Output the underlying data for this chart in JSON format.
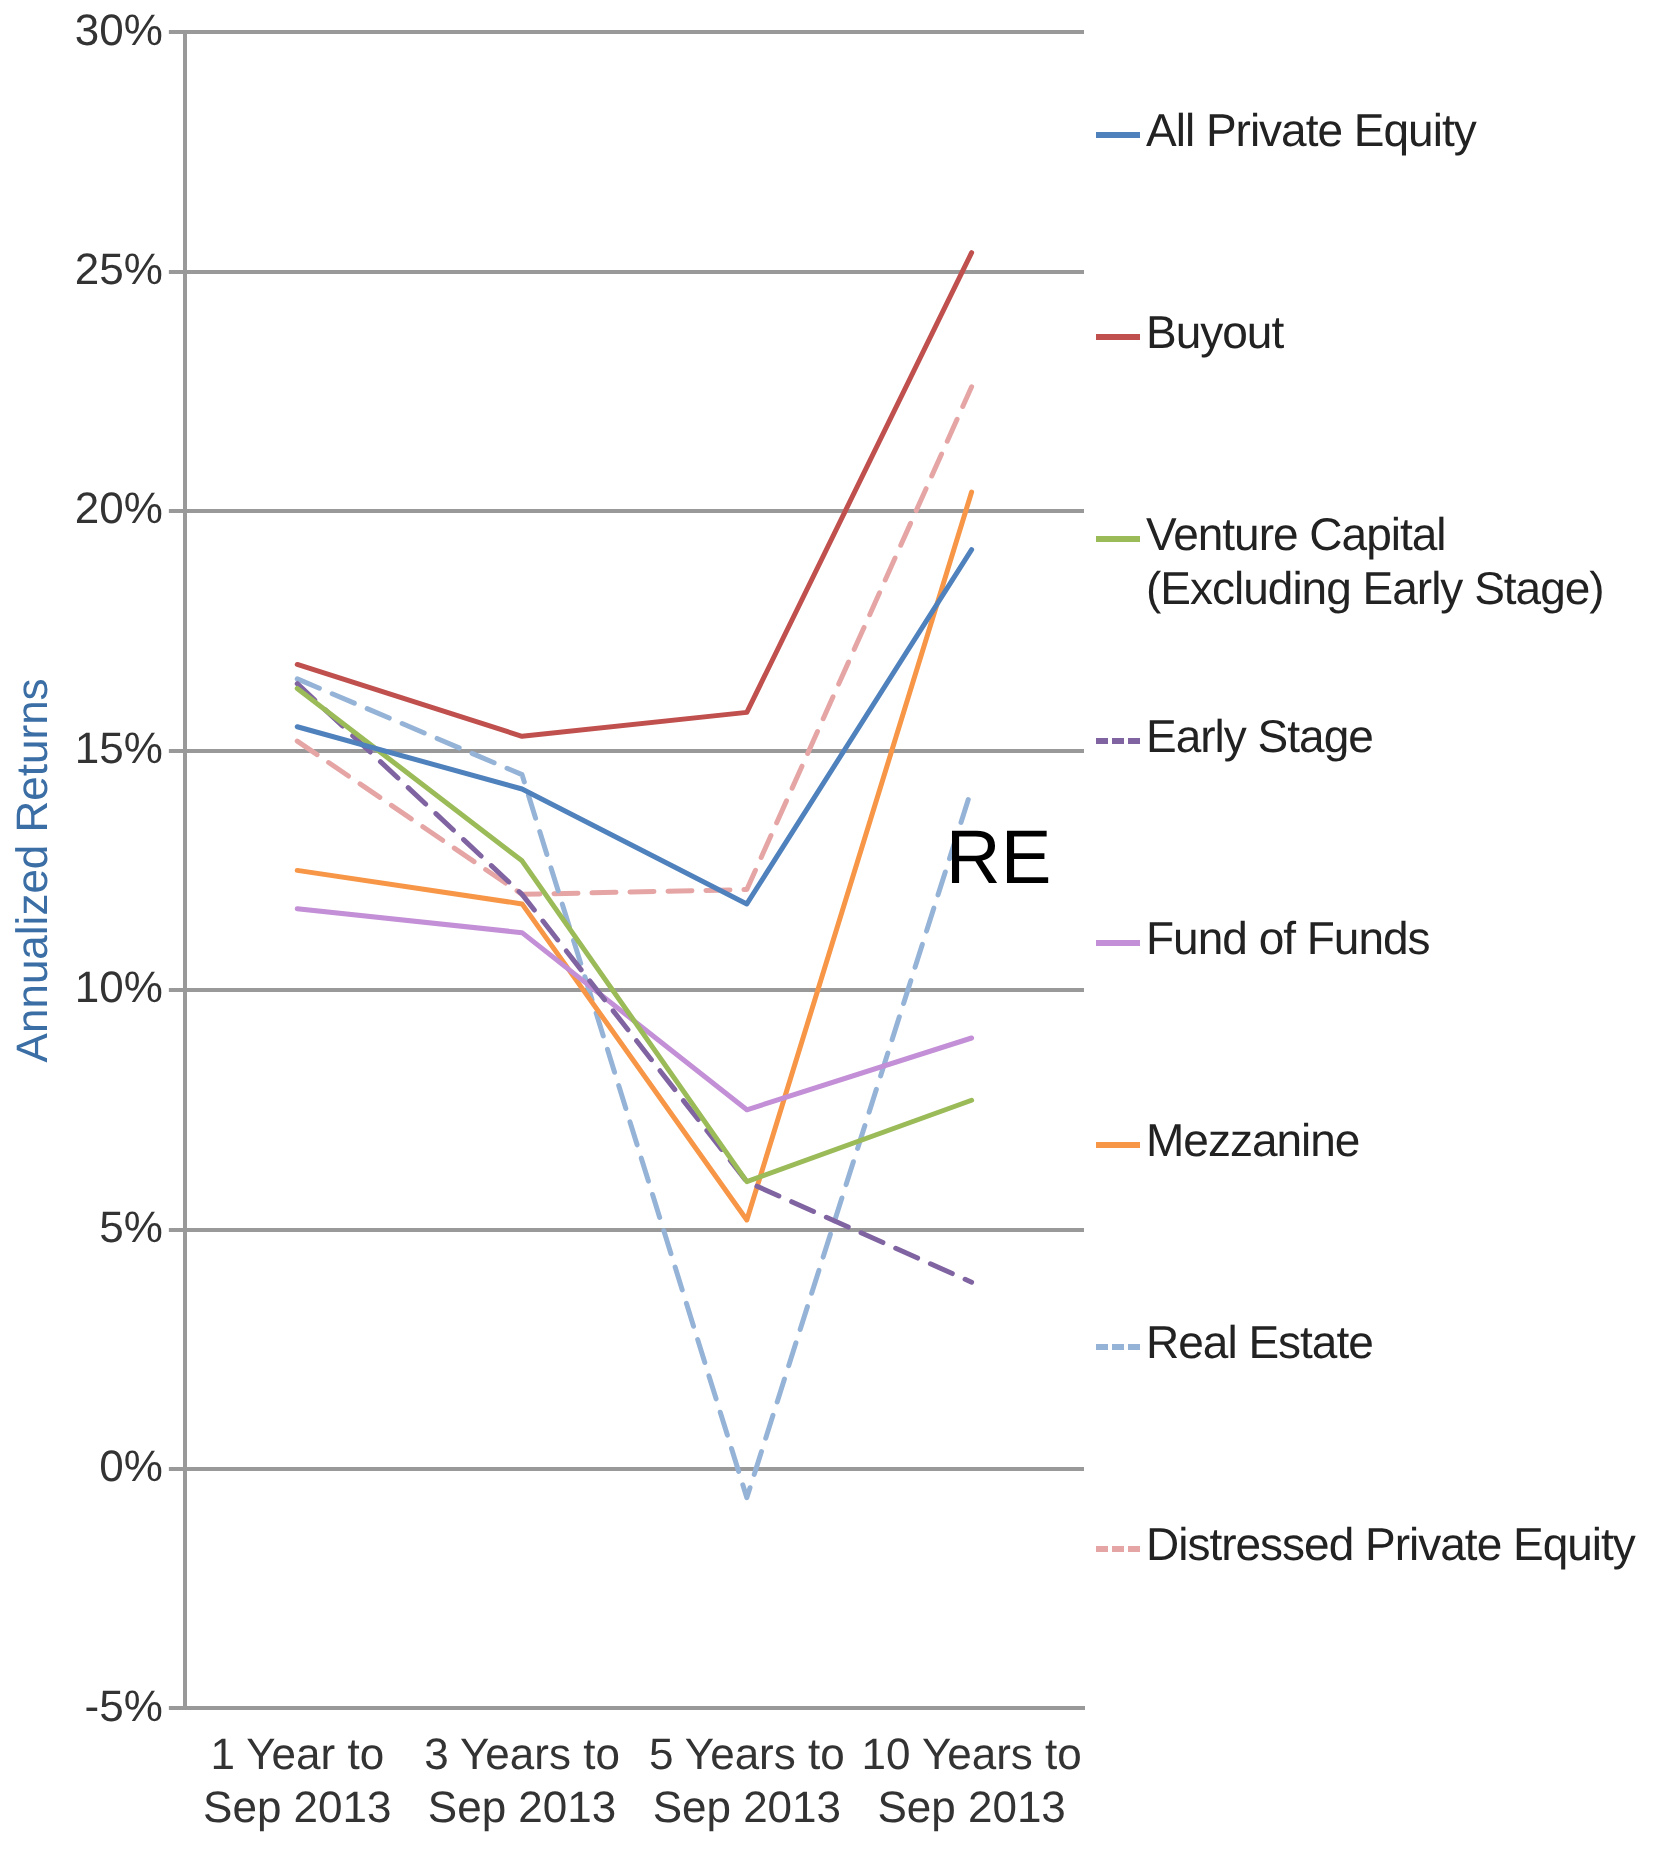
{
  "chart_data": {
    "type": "line",
    "ylabel": "Annualized Returns",
    "categories": [
      "1 Year to Sep 2013",
      "3 Years to Sep 2013",
      "5 Years to Sep 2013",
      "10 Years to Sep 2013"
    ],
    "series": [
      {
        "name": "All Private Equity",
        "color": "#4f81bd",
        "line_style": "solid",
        "values": [
          15.5,
          14.2,
          11.8,
          19.2
        ]
      },
      {
        "name": "Buyout",
        "color": "#c0504d",
        "line_style": "solid",
        "values": [
          16.8,
          15.3,
          15.8,
          25.4
        ]
      },
      {
        "name": "Venture Capital (Excluding Early Stage)",
        "color": "#9bbb59",
        "line_style": "solid",
        "values": [
          16.3,
          12.7,
          6.0,
          7.7
        ]
      },
      {
        "name": "Early Stage",
        "color": "#8064a2",
        "line_style": "dashed",
        "values": [
          16.4,
          12.0,
          6.0,
          3.9
        ]
      },
      {
        "name": "Fund of Funds",
        "color": "#c38fd6",
        "line_style": "solid",
        "values": [
          11.7,
          11.2,
          7.5,
          9.0
        ]
      },
      {
        "name": "Mezzanine",
        "color": "#f79646",
        "line_style": "solid",
        "values": [
          12.5,
          11.8,
          5.2,
          20.4
        ]
      },
      {
        "name": "Real Estate",
        "color": "#95b3d7",
        "line_style": "dashed",
        "values": [
          16.5,
          14.5,
          -0.6,
          14.2
        ]
      },
      {
        "name": "Distressed Private Equity",
        "color": "#e6a5a5",
        "line_style": "dashed",
        "values": [
          15.2,
          12.0,
          12.1,
          22.6
        ]
      }
    ],
    "ylim": [
      -5,
      30
    ],
    "yticks": [
      {
        "value": -5,
        "label": "-5%"
      },
      {
        "value": 0,
        "label": "0%"
      },
      {
        "value": 5,
        "label": "5%"
      },
      {
        "value": 10,
        "label": "10%"
      },
      {
        "value": 15,
        "label": "15%"
      },
      {
        "value": 20,
        "label": "20%"
      },
      {
        "value": 25,
        "label": "25%"
      },
      {
        "value": 30,
        "label": "30%"
      }
    ],
    "grid": "y",
    "legend": "right",
    "marker": "none",
    "annotations": [
      "RE"
    ]
  }
}
